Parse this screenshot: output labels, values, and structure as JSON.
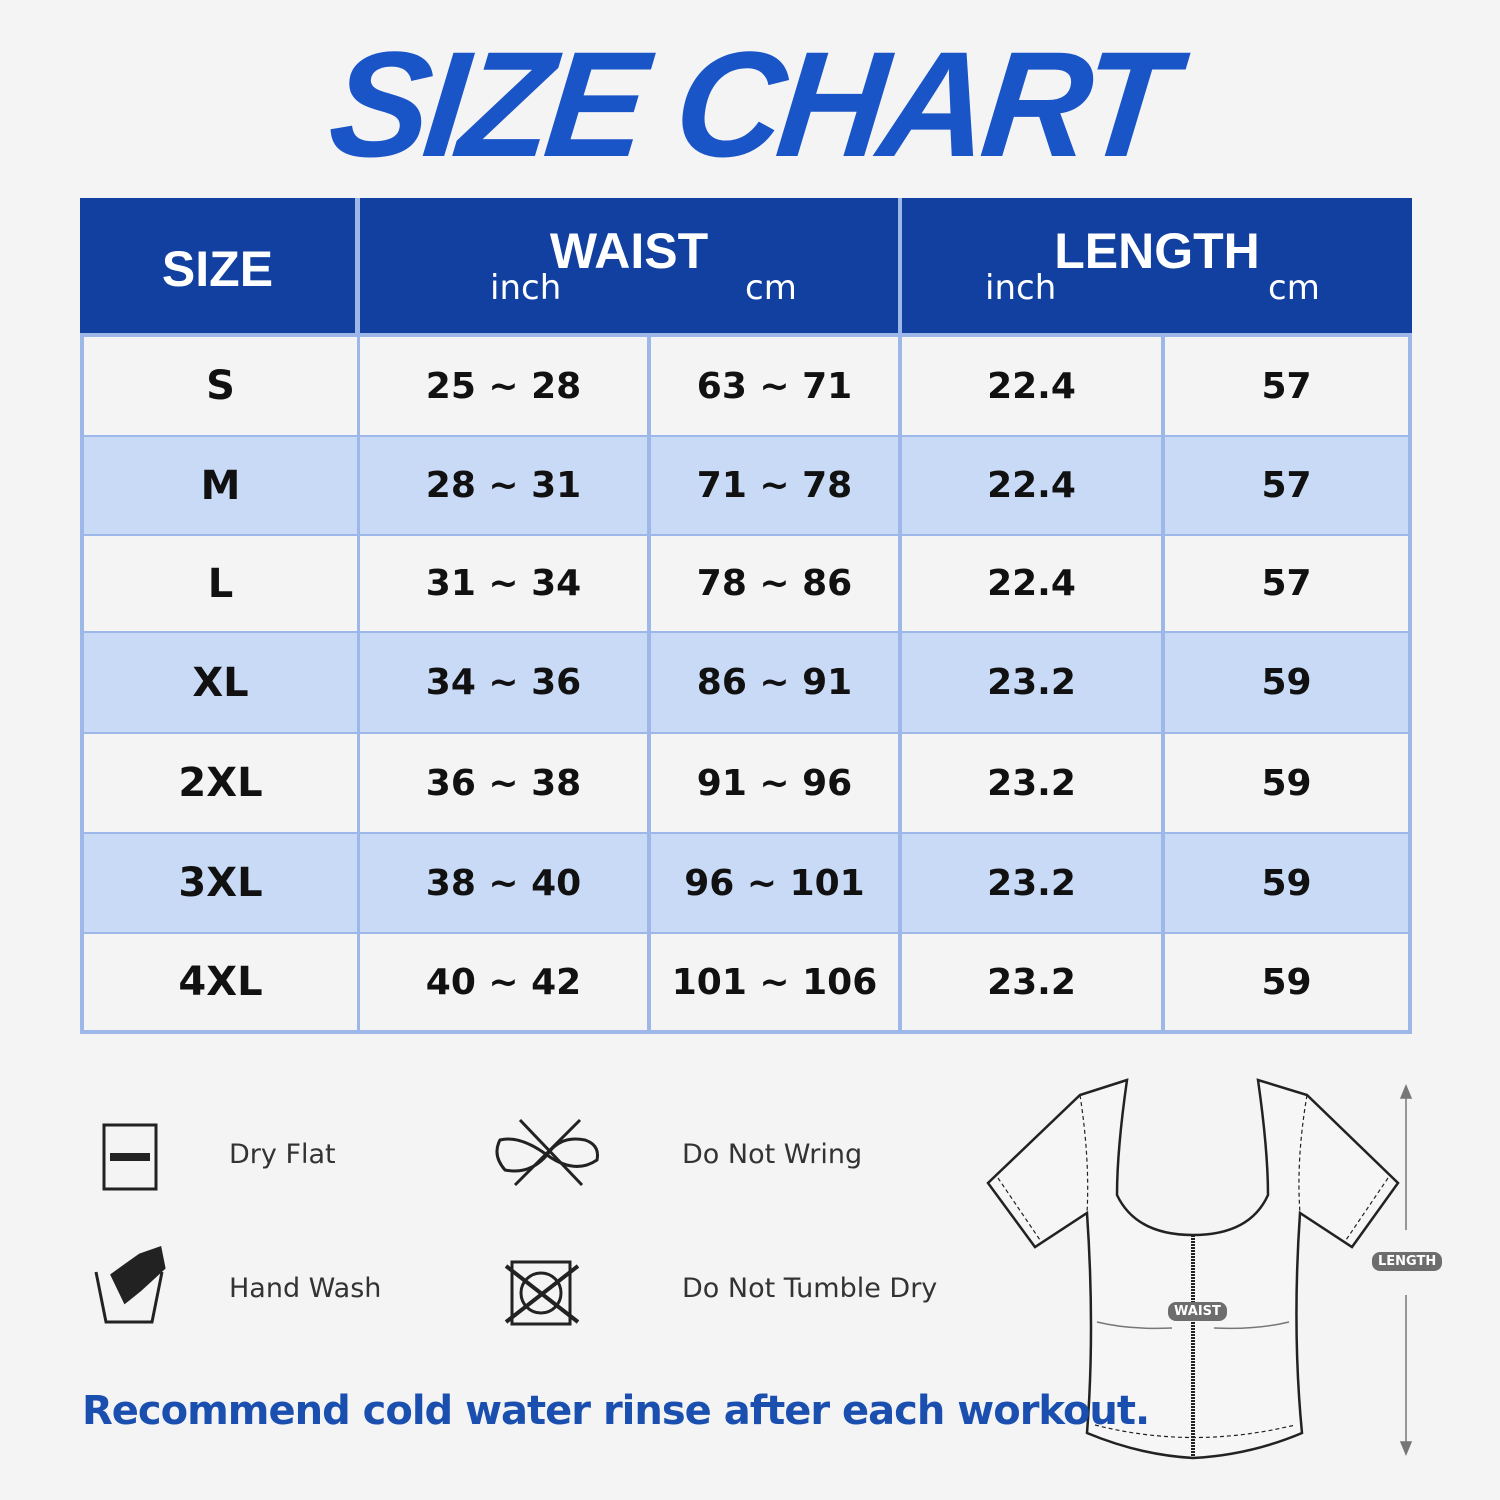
{
  "title": "SIZE CHART",
  "header": {
    "size": "SIZE",
    "waist": "WAIST",
    "waist_inch": "inch",
    "waist_cm": "cm",
    "length": "LENGTH",
    "length_inch": "inch",
    "length_cm": "cm"
  },
  "rows": [
    {
      "size": "S",
      "waist_inch": "25 ~ 28",
      "waist_cm": "63 ~ 71",
      "length_inch": "22.4",
      "length_cm": "57"
    },
    {
      "size": "M",
      "waist_inch": "28 ~ 31",
      "waist_cm": "71 ~ 78",
      "length_inch": "22.4",
      "length_cm": "57"
    },
    {
      "size": "L",
      "waist_inch": "31 ~ 34",
      "waist_cm": "78 ~ 86",
      "length_inch": "22.4",
      "length_cm": "57"
    },
    {
      "size": "XL",
      "waist_inch": "34 ~ 36",
      "waist_cm": "86 ~ 91",
      "length_inch": "23.2",
      "length_cm": "59"
    },
    {
      "size": "2XL",
      "waist_inch": "36 ~ 38",
      "waist_cm": "91 ~ 96",
      "length_inch": "23.2",
      "length_cm": "59"
    },
    {
      "size": "3XL",
      "waist_inch": "38 ~ 40",
      "waist_cm": "96 ~ 101",
      "length_inch": "23.2",
      "length_cm": "59"
    },
    {
      "size": "4XL",
      "waist_inch": "40 ~ 42",
      "waist_cm": "101 ~ 106",
      "length_inch": "23.2",
      "length_cm": "59"
    }
  ],
  "care": [
    {
      "label": "Dry Flat",
      "icon": "dry-flat-icon"
    },
    {
      "label": "Do Not Wring",
      "icon": "do-not-wring-icon"
    },
    {
      "label": "Hand Wash",
      "icon": "hand-wash-icon"
    },
    {
      "label": "Do Not Tumble Dry",
      "icon": "do-not-tumble-dry-icon"
    }
  ],
  "note": "Recommend cold water rinse after each workout.",
  "diagram": {
    "waist_label": "WAIST",
    "length_label": "LENGTH"
  },
  "colors": {
    "header_blue": "#1140a0",
    "title_blue": "#1a55c8",
    "row_alt": "#c8daf6",
    "note_blue": "#1a4fb0"
  }
}
